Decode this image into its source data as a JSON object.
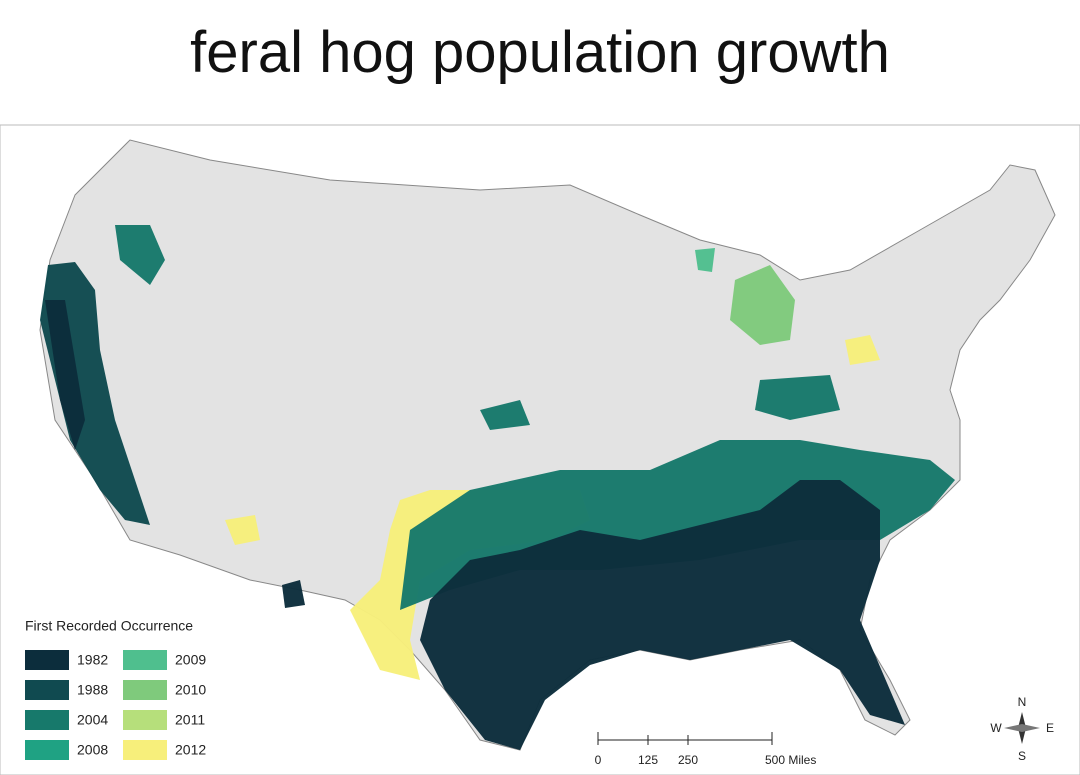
{
  "title": "feral hog population growth",
  "legend": {
    "title": "First Recorded Occurrence",
    "items": [
      {
        "label": "1982",
        "color": "#0c2d3c"
      },
      {
        "label": "1988",
        "color": "#104a50"
      },
      {
        "label": "2004",
        "color": "#17796b"
      },
      {
        "label": "2008",
        "color": "#1fa283"
      },
      {
        "label": "2009",
        "color": "#4fbf8e"
      },
      {
        "label": "2010",
        "color": "#7fca7c"
      },
      {
        "label": "2011",
        "color": "#b6df7b"
      },
      {
        "label": "2012",
        "color": "#f7ef7b"
      }
    ]
  },
  "scale_bar": {
    "labels": [
      "0",
      "125",
      "250",
      "500 Miles"
    ]
  },
  "compass": {
    "north": "N",
    "east": "E",
    "south": "S",
    "west": "W"
  }
}
